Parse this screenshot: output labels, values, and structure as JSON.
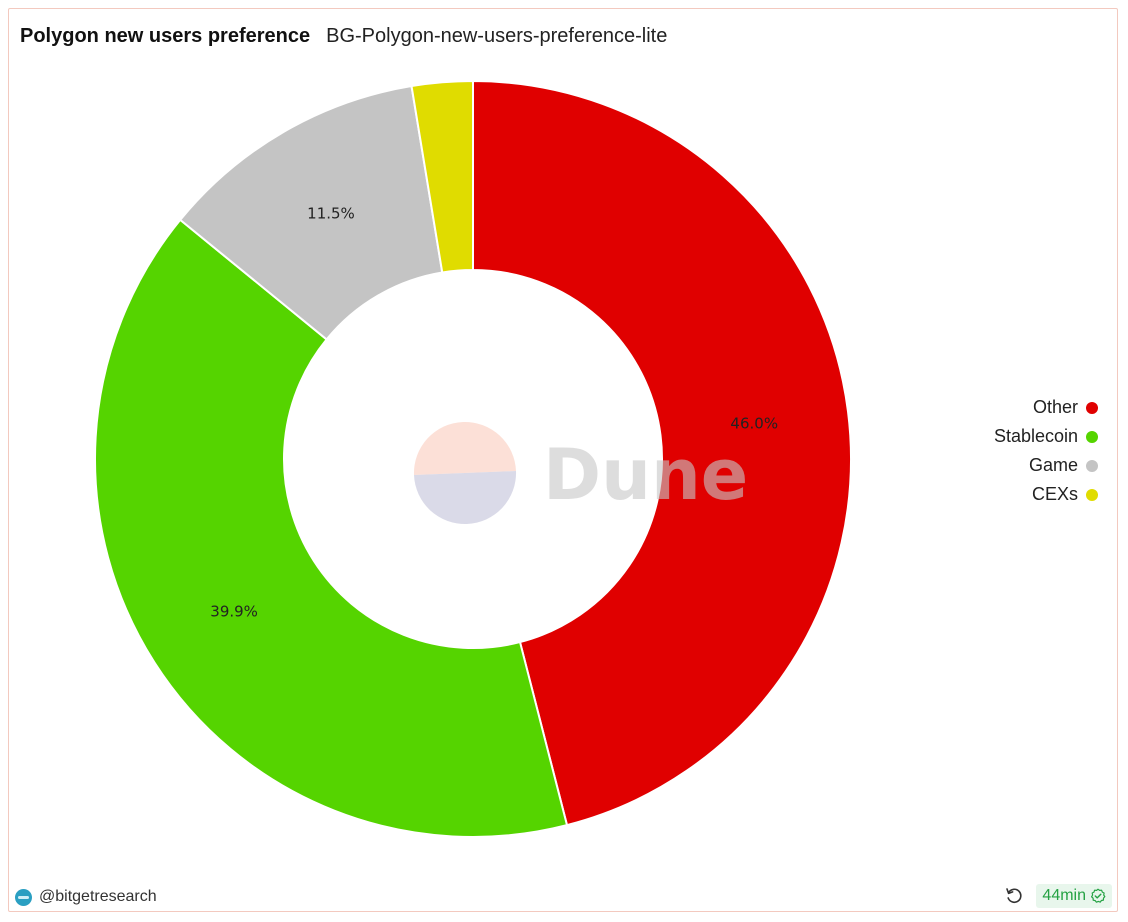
{
  "header": {
    "title": "Polygon new users preference",
    "subtitle": "BG-Polygon-new-users-preference-lite"
  },
  "chart_data": {
    "type": "pie",
    "title": "Polygon new users preference",
    "series": [
      {
        "name": "Other",
        "value": 46.0,
        "label": "46.0%",
        "color": "#e00000"
      },
      {
        "name": "Stablecoin",
        "value": 39.9,
        "label": "39.9%",
        "color": "#55d400"
      },
      {
        "name": "Game",
        "value": 11.5,
        "label": "11.5%",
        "color": "#c4c4c4"
      },
      {
        "name": "CEXs",
        "value": 2.6,
        "label": "",
        "color": "#e0dc00"
      }
    ],
    "legend_position": "right"
  },
  "watermark": {
    "text": "Dune"
  },
  "footer": {
    "author": "@bitgetresearch",
    "age": "44min",
    "avatar_icon": "bitget-avatar-icon",
    "refresh_icon": "refresh-icon",
    "status_icon": "check-circle-icon"
  }
}
